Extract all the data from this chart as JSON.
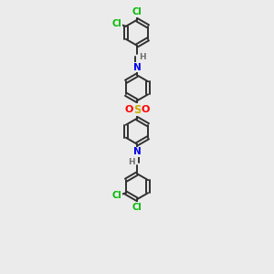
{
  "bg_color": "#ebebeb",
  "atom_colors": {
    "C": "#303030",
    "N": "#0000ee",
    "S": "#ccaa00",
    "O": "#ff0000",
    "Cl": "#00bb00",
    "H": "#707070"
  },
  "line_color": "#303030",
  "line_width": 1.4,
  "figsize": [
    3.0,
    3.0
  ],
  "dpi": 100,
  "xlim": [
    -0.42,
    0.42
  ],
  "ylim": [
    -1.55,
    1.55
  ]
}
